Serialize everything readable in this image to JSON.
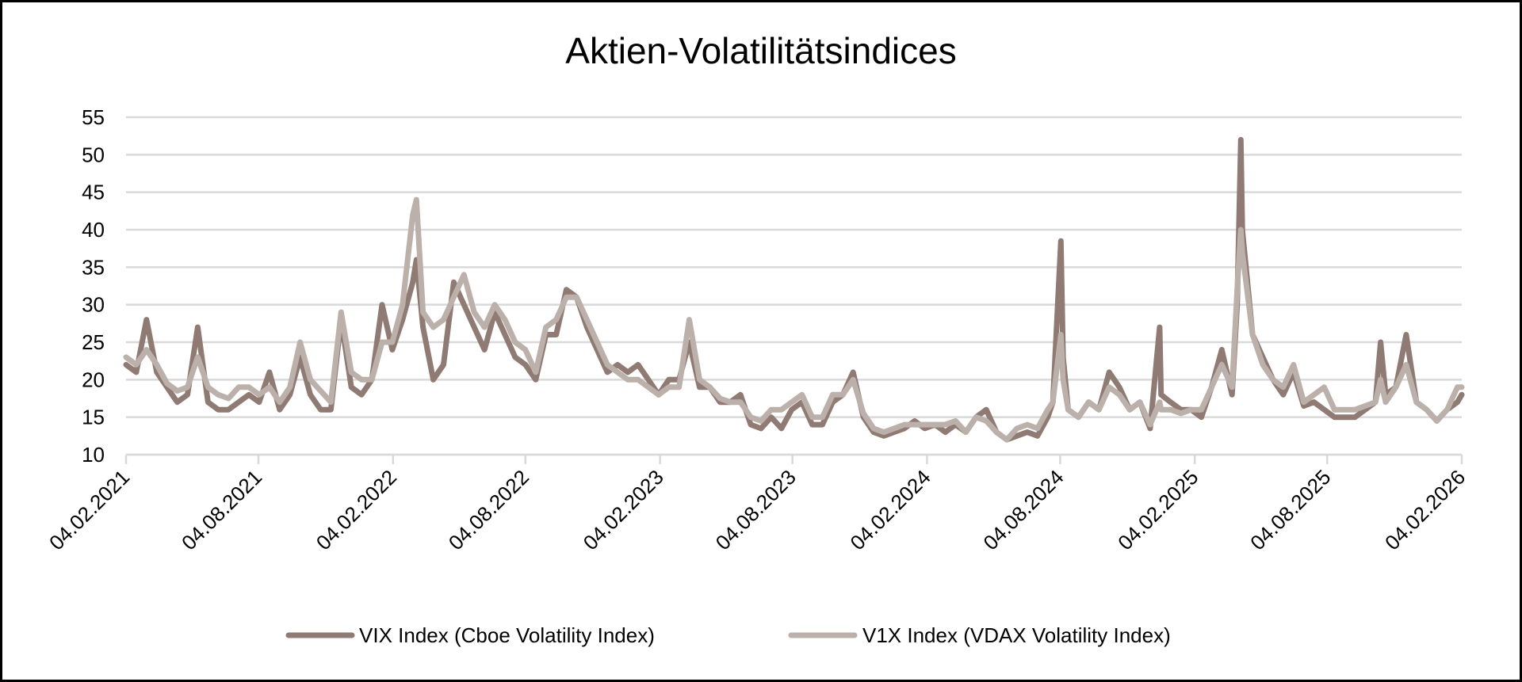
{
  "chart_data": {
    "type": "line",
    "title": "Aktien-Volatilitätsindices",
    "xlabel": "",
    "ylabel": "",
    "ylim": [
      10,
      55
    ],
    "yticks": [
      10,
      15,
      20,
      25,
      30,
      35,
      40,
      45,
      50,
      55
    ],
    "xlim": [
      "2021-02-04",
      "2026-02-04"
    ],
    "xticks": [
      {
        "date": "2021-02-04",
        "label": "04.02.2021"
      },
      {
        "date": "2021-08-04",
        "label": "04.08.2021"
      },
      {
        "date": "2022-02-04",
        "label": "04.02.2022"
      },
      {
        "date": "2022-08-04",
        "label": "04.08.2022"
      },
      {
        "date": "2023-02-04",
        "label": "04.02.2023"
      },
      {
        "date": "2023-08-04",
        "label": "04.08.2023"
      },
      {
        "date": "2024-02-04",
        "label": "04.02.2024"
      },
      {
        "date": "2024-08-04",
        "label": "04.08.2024"
      },
      {
        "date": "2025-02-04",
        "label": "04.02.2025"
      },
      {
        "date": "2025-08-04",
        "label": "04.08.2025"
      },
      {
        "date": "2026-02-04",
        "label": "04.02.2026"
      }
    ],
    "grid": true,
    "legend_position": "bottom",
    "series": [
      {
        "name": "VIX Index (Cboe Volatility Index)",
        "color": "#8f7b73"
      },
      {
        "name": "V1X Index (VDAX Volatility Index)",
        "color": "#bcb0ab"
      }
    ],
    "columns": [
      "date",
      "VIX Index (Cboe Volatility Index)",
      "V1X Index (VDAX Volatility Index)"
    ],
    "rows": [
      [
        "2021-02-04",
        22,
        23
      ],
      [
        "2021-02-18",
        21,
        22
      ],
      [
        "2021-03-04",
        28,
        24
      ],
      [
        "2021-03-18",
        21,
        22
      ],
      [
        "2021-04-01",
        19,
        19.5
      ],
      [
        "2021-04-15",
        17,
        18.5
      ],
      [
        "2021-04-29",
        18,
        19
      ],
      [
        "2021-05-13",
        27,
        23
      ],
      [
        "2021-05-27",
        17,
        19
      ],
      [
        "2021-06-10",
        16,
        18
      ],
      [
        "2021-06-24",
        16,
        17.5
      ],
      [
        "2021-07-08",
        17,
        19
      ],
      [
        "2021-07-22",
        18,
        19
      ],
      [
        "2021-08-05",
        17,
        18
      ],
      [
        "2021-08-19",
        21,
        19
      ],
      [
        "2021-09-02",
        16,
        17
      ],
      [
        "2021-09-16",
        18,
        19
      ],
      [
        "2021-09-30",
        23,
        25
      ],
      [
        "2021-10-14",
        18,
        20
      ],
      [
        "2021-10-28",
        16,
        18.5
      ],
      [
        "2021-11-11",
        16,
        17
      ],
      [
        "2021-11-25",
        28,
        29
      ],
      [
        "2021-12-09",
        19,
        21
      ],
      [
        "2021-12-23",
        18,
        20
      ],
      [
        "2022-01-06",
        20,
        20
      ],
      [
        "2022-01-20",
        30,
        25
      ],
      [
        "2022-02-03",
        24,
        25
      ],
      [
        "2022-02-17",
        28,
        30
      ],
      [
        "2022-03-03",
        33,
        42
      ],
      [
        "2022-03-08",
        36,
        44
      ],
      [
        "2022-03-17",
        27,
        29
      ],
      [
        "2022-03-31",
        20,
        27
      ],
      [
        "2022-04-14",
        22,
        28
      ],
      [
        "2022-04-28",
        33,
        31
      ],
      [
        "2022-05-12",
        30,
        34
      ],
      [
        "2022-05-26",
        27,
        29
      ],
      [
        "2022-06-09",
        24,
        27
      ],
      [
        "2022-06-23",
        29,
        30
      ],
      [
        "2022-07-07",
        26,
        28
      ],
      [
        "2022-07-21",
        23,
        25
      ],
      [
        "2022-08-04",
        22,
        24
      ],
      [
        "2022-08-18",
        20,
        21
      ],
      [
        "2022-09-01",
        26,
        27
      ],
      [
        "2022-09-15",
        26,
        28
      ],
      [
        "2022-09-29",
        32,
        31
      ],
      [
        "2022-10-13",
        31,
        31
      ],
      [
        "2022-10-27",
        27,
        28
      ],
      [
        "2022-11-10",
        24,
        25
      ],
      [
        "2022-11-24",
        21,
        22
      ],
      [
        "2022-12-08",
        22,
        21
      ],
      [
        "2022-12-22",
        21,
        20
      ],
      [
        "2023-01-05",
        22,
        20
      ],
      [
        "2023-01-19",
        20,
        19
      ],
      [
        "2023-02-02",
        18,
        18
      ],
      [
        "2023-02-16",
        20,
        19
      ],
      [
        "2023-03-02",
        20,
        19
      ],
      [
        "2023-03-16",
        25,
        28
      ],
      [
        "2023-03-30",
        19,
        20
      ],
      [
        "2023-04-13",
        19,
        19
      ],
      [
        "2023-04-27",
        17,
        17.5
      ],
      [
        "2023-05-11",
        17,
        17
      ],
      [
        "2023-05-25",
        18,
        17
      ],
      [
        "2023-06-08",
        14,
        15
      ],
      [
        "2023-06-22",
        13.5,
        14.5
      ],
      [
        "2023-07-06",
        15,
        16
      ],
      [
        "2023-07-20",
        13.5,
        16
      ],
      [
        "2023-08-03",
        16,
        17
      ],
      [
        "2023-08-17",
        17,
        18
      ],
      [
        "2023-08-31",
        14,
        15
      ],
      [
        "2023-09-14",
        14,
        15
      ],
      [
        "2023-09-28",
        17,
        18
      ],
      [
        "2023-10-12",
        18,
        18
      ],
      [
        "2023-10-26",
        21,
        20
      ],
      [
        "2023-11-09",
        15,
        15.5
      ],
      [
        "2023-11-23",
        13,
        13.5
      ],
      [
        "2023-12-07",
        12.5,
        13
      ],
      [
        "2023-12-21",
        13,
        13.5
      ],
      [
        "2024-01-04",
        13.5,
        14
      ],
      [
        "2024-01-18",
        14.5,
        14
      ],
      [
        "2024-02-01",
        13.5,
        14
      ],
      [
        "2024-02-15",
        14,
        14
      ],
      [
        "2024-02-29",
        13,
        14
      ],
      [
        "2024-03-14",
        14,
        14.5
      ],
      [
        "2024-03-28",
        13,
        13
      ],
      [
        "2024-04-11",
        15,
        15
      ],
      [
        "2024-04-25",
        16,
        14.5
      ],
      [
        "2024-05-09",
        13,
        13
      ],
      [
        "2024-05-23",
        12,
        12
      ],
      [
        "2024-06-06",
        12.5,
        13.5
      ],
      [
        "2024-06-20",
        13,
        14
      ],
      [
        "2024-07-04",
        12.5,
        13.5
      ],
      [
        "2024-07-18",
        15,
        16
      ],
      [
        "2024-07-25",
        17,
        17
      ],
      [
        "2024-08-05",
        38.5,
        26
      ],
      [
        "2024-08-08",
        23,
        20
      ],
      [
        "2024-08-15",
        16,
        16
      ],
      [
        "2024-08-29",
        15,
        15
      ],
      [
        "2024-09-12",
        17,
        17
      ],
      [
        "2024-09-26",
        16,
        16
      ],
      [
        "2024-10-10",
        21,
        19
      ],
      [
        "2024-10-24",
        19,
        18
      ],
      [
        "2024-11-07",
        16,
        16
      ],
      [
        "2024-11-21",
        17,
        17
      ],
      [
        "2024-12-05",
        13.5,
        14
      ],
      [
        "2024-12-18",
        27,
        17
      ],
      [
        "2024-12-20",
        18,
        16
      ],
      [
        "2025-01-02",
        17,
        16
      ],
      [
        "2025-01-16",
        16,
        15.5
      ],
      [
        "2025-01-30",
        16,
        16
      ],
      [
        "2025-02-13",
        15,
        16
      ],
      [
        "2025-02-27",
        19,
        19
      ],
      [
        "2025-03-13",
        24,
        22
      ],
      [
        "2025-03-27",
        18,
        19
      ],
      [
        "2025-04-03",
        30,
        32
      ],
      [
        "2025-04-08",
        52,
        40
      ],
      [
        "2025-04-10",
        40,
        37
      ],
      [
        "2025-04-24",
        26,
        26
      ],
      [
        "2025-05-08",
        23,
        22
      ],
      [
        "2025-05-22",
        20,
        20
      ],
      [
        "2025-06-05",
        18,
        19
      ],
      [
        "2025-06-19",
        21,
        22
      ],
      [
        "2025-07-03",
        16.5,
        17
      ],
      [
        "2025-07-17",
        17,
        18
      ],
      [
        "2025-07-31",
        16,
        19
      ],
      [
        "2025-08-14",
        15,
        16
      ],
      [
        "2025-08-28",
        15,
        16
      ],
      [
        "2025-09-11",
        15,
        16
      ],
      [
        "2025-09-25",
        16,
        16.5
      ],
      [
        "2025-10-09",
        17,
        17
      ],
      [
        "2025-10-16",
        25,
        20
      ],
      [
        "2025-10-23",
        18,
        17
      ],
      [
        "2025-11-06",
        19,
        19
      ],
      [
        "2025-11-20",
        26,
        22
      ],
      [
        "2025-12-04",
        17,
        17
      ],
      [
        "2025-12-18",
        16,
        16
      ],
      [
        "2026-01-01",
        14.5,
        14.5
      ],
      [
        "2026-01-15",
        16,
        16
      ],
      [
        "2026-01-29",
        17,
        19
      ],
      [
        "2026-02-04",
        18,
        19
      ]
    ]
  }
}
